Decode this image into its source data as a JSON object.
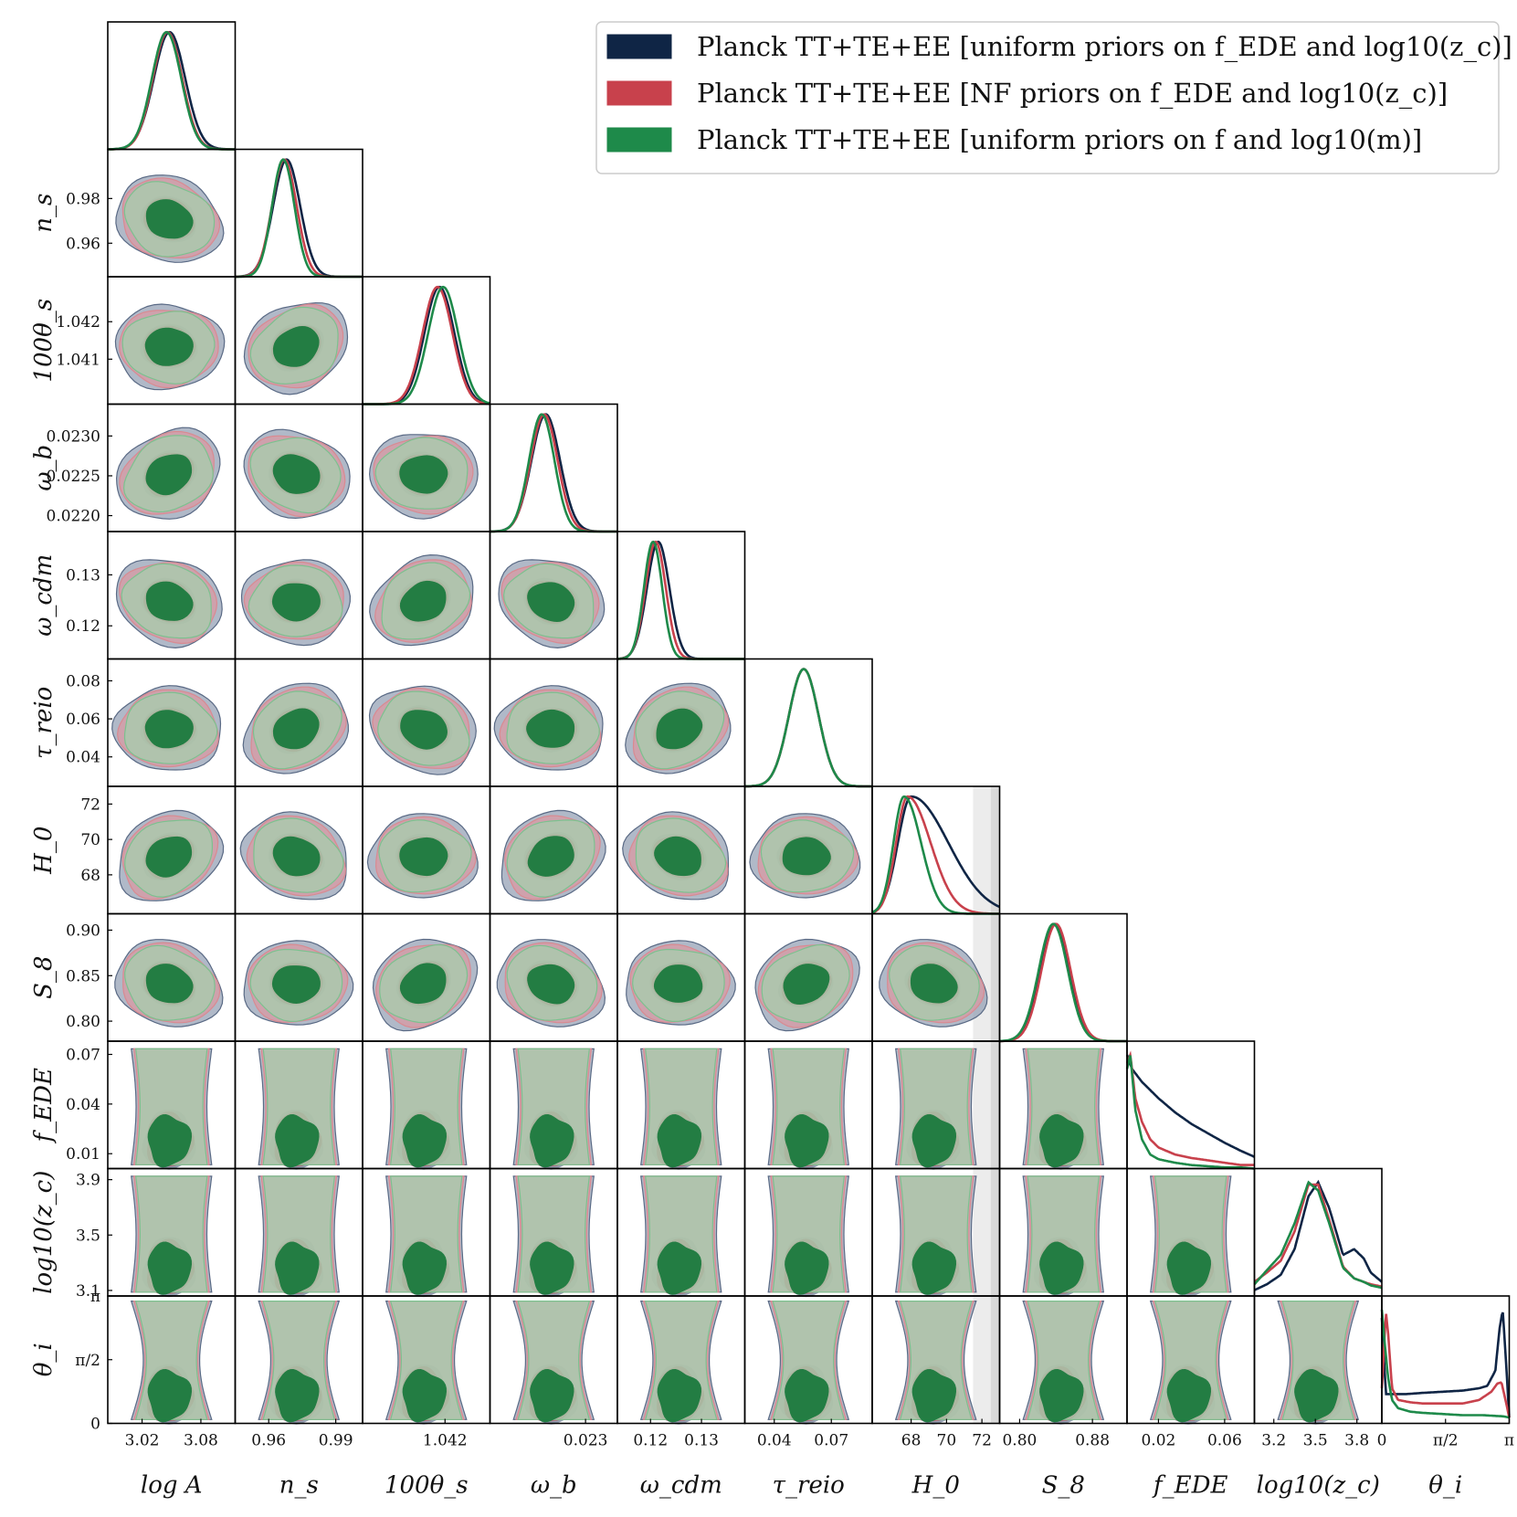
{
  "chart_data": {
    "type": "corner",
    "title": "",
    "legend_placement": "top-right",
    "grid": false,
    "params": [
      {
        "key": "logA",
        "label": "log A",
        "ticks": [
          "3.02",
          "3.08"
        ],
        "y_ticks": [],
        "tick_values": [
          3.02,
          3.08
        ],
        "range": [
          2.985,
          3.115
        ]
      },
      {
        "key": "ns",
        "label": "n_s",
        "ticks": [
          "0.96",
          "0.99"
        ],
        "y_ticks": [
          "0.96",
          "0.98"
        ],
        "tick_values": [
          0.96,
          0.99
        ],
        "range": [
          0.945,
          1.002
        ]
      },
      {
        "key": "theta",
        "label": "100θ_s",
        "ticks": [
          "1.042"
        ],
        "y_ticks": [
          "1.041",
          "1.042"
        ],
        "tick_values": [
          1.042
        ],
        "range": [
          1.0398,
          1.0432
        ]
      },
      {
        "key": "omegab",
        "label": "ω_b",
        "ticks": [
          "0.023"
        ],
        "y_ticks": [
          "0.0220",
          "0.0225",
          "0.0230"
        ],
        "tick_values": [
          0.023
        ],
        "range": [
          0.0218,
          0.0234
        ]
      },
      {
        "key": "omegacdm",
        "label": "ω_cdm",
        "ticks": [
          "0.12",
          "0.13"
        ],
        "y_ticks": [
          "0.12",
          "0.13"
        ],
        "tick_values": [
          0.12,
          0.13
        ],
        "range": [
          0.1135,
          0.1385
        ]
      },
      {
        "key": "tau",
        "label": "τ_reio",
        "ticks": [
          "0.04",
          "0.07"
        ],
        "y_ticks": [
          "0.04",
          "0.06",
          "0.08"
        ],
        "tick_values": [
          0.04,
          0.07
        ],
        "range": [
          0.0245,
          0.0915
        ]
      },
      {
        "key": "H0",
        "label": "H_0",
        "ticks": [
          "68",
          "70",
          "72"
        ],
        "y_ticks": [
          "68",
          "70",
          "72"
        ],
        "tick_values": [
          68,
          70,
          72
        ],
        "range": [
          65.8,
          73.0
        ]
      },
      {
        "key": "S8",
        "label": "S_8",
        "ticks": [
          "0.80",
          "0.88"
        ],
        "y_ticks": [
          "0.80",
          "0.85",
          "0.90"
        ],
        "tick_values": [
          0.8,
          0.88
        ],
        "range": [
          0.778,
          0.918
        ]
      },
      {
        "key": "fEDE",
        "label": "f_EDE",
        "ticks": [
          "0.02",
          "0.06"
        ],
        "y_ticks": [
          "0.01",
          "0.04",
          "0.07"
        ],
        "tick_values": [
          0.02,
          0.06
        ],
        "range": [
          0.001,
          0.078
        ]
      },
      {
        "key": "logzc",
        "label": "log10(z_c)",
        "ticks": [
          "3.2",
          "3.5",
          "3.8"
        ],
        "y_ticks": [
          "3.1",
          "3.5",
          "3.9"
        ],
        "tick_values": [
          3.2,
          3.5,
          3.8
        ],
        "range": [
          3.06,
          3.98
        ]
      },
      {
        "key": "thetai",
        "label": "θ_i",
        "ticks": [
          "0",
          "π/2",
          "π"
        ],
        "y_ticks": [
          "0",
          "π/2",
          "π"
        ],
        "tick_values": [
          0,
          1.5708,
          3.1416
        ],
        "range": [
          0,
          3.1416
        ]
      }
    ],
    "series": [
      {
        "name": "Planck TT+TE+EE [uniform priors on f_EDE and log10(z_c)]",
        "color": "#0f2545",
        "contour_color": "#5a6a85"
      },
      {
        "name": "Planck TT+TE+EE [NF priors on f_EDE and log10(z_c)]",
        "color": "#c8414c",
        "contour_color": "#d98a91"
      },
      {
        "name": "Planck TT+TE+EE [uniform priors on f and log10(m)]",
        "color": "#1e8a4a",
        "contour_color": "#7cc18f"
      }
    ],
    "marginals": {
      "logA": [
        {
          "mean": 3.048,
          "sigma": 0.016
        },
        {
          "mean": 3.046,
          "sigma": 0.015
        },
        {
          "mean": 3.045,
          "sigma": 0.015
        }
      ],
      "ns": [
        {
          "mean": 0.968,
          "sigma": 0.006,
          "skew": 0.011
        },
        {
          "mean": 0.967,
          "sigma": 0.0055,
          "skew": 0.006
        },
        {
          "mean": 0.9665,
          "sigma": 0.005,
          "skew": 0.002
        }
      ],
      "theta": [
        {
          "mean": 1.04185,
          "sigma": 0.0004
        },
        {
          "mean": 1.0418,
          "sigma": 0.0004
        },
        {
          "mean": 1.04195,
          "sigma": 0.0004
        }
      ],
      "omegab": [
        {
          "mean": 0.0225,
          "sigma": 0.00018
        },
        {
          "mean": 0.02248,
          "sigma": 0.00017
        },
        {
          "mean": 0.02245,
          "sigma": 0.00016
        }
      ],
      "omegacdm": [
        {
          "mean": 0.1215,
          "sigma": 0.0022,
          "skew": 0.006
        },
        {
          "mean": 0.121,
          "sigma": 0.002,
          "skew": 0.004
        },
        {
          "mean": 0.1205,
          "sigma": 0.0018,
          "skew": 0.002
        }
      ],
      "tau": [
        {
          "mean": 0.0555,
          "sigma": 0.0078
        },
        {
          "mean": 0.0555,
          "sigma": 0.0078
        },
        {
          "mean": 0.0555,
          "sigma": 0.0078
        }
      ],
      "H0": [
        {
          "mean": 68.0,
          "sigma": 0.75,
          "skew": 1.8
        },
        {
          "mean": 67.8,
          "sigma": 0.65,
          "skew": 1.0
        },
        {
          "mean": 67.6,
          "sigma": 0.6,
          "skew": 0.6
        }
      ],
      "S8": [
        {
          "mean": 0.839,
          "sigma": 0.016
        },
        {
          "mean": 0.84,
          "sigma": 0.016
        },
        {
          "mean": 0.837,
          "sigma": 0.016
        }
      ],
      "fEDE": [
        {
          "x": [
            0.001,
            0.004,
            0.01,
            0.02,
            0.03,
            0.04,
            0.05,
            0.06,
            0.07,
            0.078
          ],
          "y": [
            0.97,
            0.85,
            0.74,
            0.6,
            0.48,
            0.38,
            0.3,
            0.22,
            0.15,
            0.1
          ]
        },
        {
          "x": [
            0.001,
            0.003,
            0.006,
            0.01,
            0.015,
            0.02,
            0.03,
            0.04,
            0.05,
            0.06,
            0.07,
            0.078
          ],
          "y": [
            0.9,
            0.97,
            0.6,
            0.4,
            0.25,
            0.18,
            0.12,
            0.09,
            0.07,
            0.05,
            0.03,
            0.03
          ]
        },
        {
          "x": [
            0.001,
            0.003,
            0.006,
            0.01,
            0.015,
            0.02,
            0.03,
            0.04,
            0.05,
            0.06,
            0.07,
            0.078
          ],
          "y": [
            0.85,
            0.97,
            0.5,
            0.25,
            0.12,
            0.08,
            0.05,
            0.03,
            0.02,
            0.01,
            0.01,
            0.0
          ]
        }
      ],
      "logzc": [
        {
          "x": [
            3.06,
            3.15,
            3.25,
            3.35,
            3.45,
            3.52,
            3.6,
            3.7,
            3.78,
            3.85,
            3.9,
            3.98
          ],
          "y": [
            0.05,
            0.1,
            0.18,
            0.4,
            0.85,
            0.97,
            0.75,
            0.35,
            0.4,
            0.32,
            0.2,
            0.12
          ]
        },
        {
          "x": [
            3.06,
            3.15,
            3.25,
            3.35,
            3.45,
            3.52,
            3.6,
            3.7,
            3.78,
            3.85,
            3.9,
            3.98
          ],
          "y": [
            0.12,
            0.2,
            0.3,
            0.55,
            0.95,
            0.95,
            0.65,
            0.25,
            0.15,
            0.12,
            0.1,
            0.08
          ]
        },
        {
          "x": [
            3.06,
            3.15,
            3.25,
            3.35,
            3.45,
            3.52,
            3.6,
            3.7,
            3.78,
            3.85,
            3.9,
            3.98
          ],
          "y": [
            0.1,
            0.22,
            0.35,
            0.62,
            0.97,
            0.9,
            0.62,
            0.24,
            0.15,
            0.12,
            0.09,
            0.07
          ]
        }
      ],
      "thetai": [
        {
          "x": [
            0,
            0.1,
            0.3,
            0.6,
            1.0,
            1.5,
            2.0,
            2.4,
            2.6,
            2.8,
            2.9,
            2.98,
            3.05,
            3.1416
          ],
          "y": [
            0.9,
            0.25,
            0.25,
            0.25,
            0.26,
            0.27,
            0.28,
            0.3,
            0.32,
            0.45,
            0.8,
            0.97,
            0.6,
            0.05
          ]
        },
        {
          "x": [
            0,
            0.1,
            0.16,
            0.25,
            0.4,
            0.7,
            1.0,
            1.5,
            2.0,
            2.4,
            2.7,
            2.85,
            2.95,
            3.05,
            3.1416
          ],
          "y": [
            0.3,
            0.95,
            0.75,
            0.3,
            0.2,
            0.18,
            0.17,
            0.17,
            0.17,
            0.2,
            0.27,
            0.34,
            0.35,
            0.2,
            0.05
          ]
        },
        {
          "x": [
            0,
            0.08,
            0.15,
            0.25,
            0.4,
            0.7,
            1.0,
            1.5,
            2.0,
            2.5,
            3.0,
            3.1416
          ],
          "y": [
            0.97,
            0.65,
            0.4,
            0.2,
            0.13,
            0.1,
            0.09,
            0.08,
            0.07,
            0.07,
            0.06,
            0.05
          ]
        }
      ]
    },
    "H0_bands": {
      "values": [
        [
          71.5,
          72.5
        ],
        [
          72.5,
          73.0
        ]
      ],
      "colors": [
        "#ececec",
        "#d9d9d9"
      ]
    },
    "axis_lines_of_nonlinear_pairs": true,
    "colors": {
      "blue_fill": "#96a1b5",
      "red_fill": "#d99aa3",
      "green_fill": "#a5cfad",
      "green_core": "#1b7a3e"
    }
  }
}
